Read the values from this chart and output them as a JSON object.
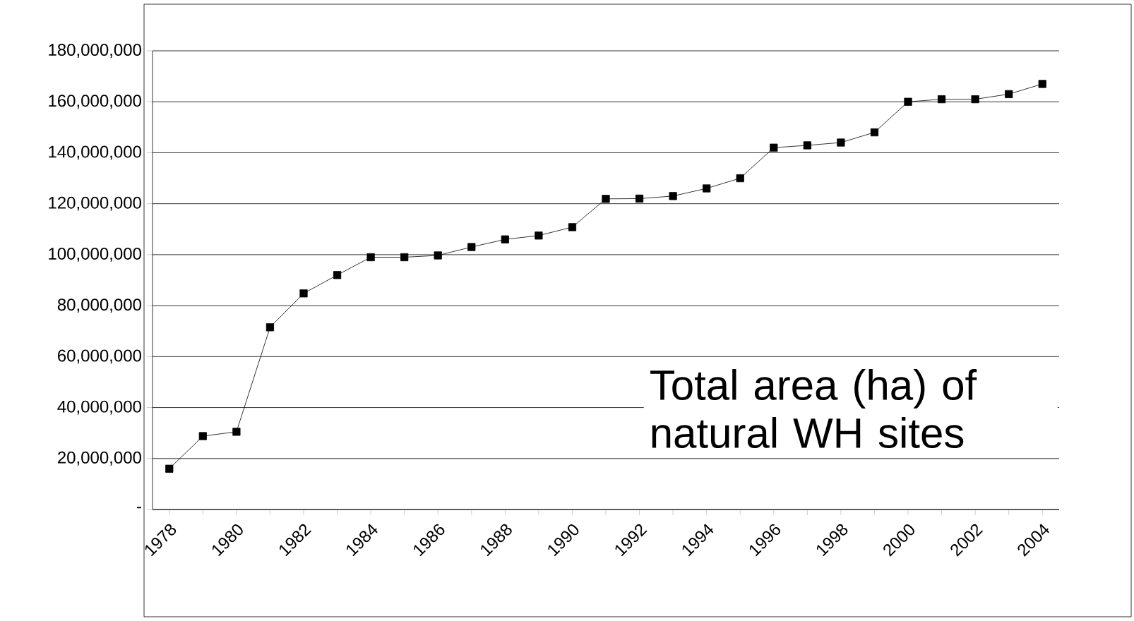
{
  "chart_data": {
    "type": "line",
    "categories": [
      "1978",
      null,
      "1980",
      null,
      "1982",
      null,
      "1984",
      null,
      "1986",
      null,
      "1988",
      null,
      "1990",
      null,
      "1992",
      null,
      "1994",
      null,
      "1996",
      null,
      "1998",
      null,
      "2000",
      null,
      "2002",
      null,
      "2004"
    ],
    "series": [
      {
        "color": "#000000",
        "values": [
          16000000,
          28800000,
          30500000,
          71500000,
          84800000,
          92000000,
          99000000,
          99000000,
          99700000,
          103000000,
          106000000,
          107500000,
          110800000,
          121900000,
          122000000,
          123000000,
          126000000,
          130000000,
          142000000,
          142900000,
          144000000,
          148000000,
          160000000,
          161000000,
          161000000,
          163000000,
          167000000
        ]
      }
    ],
    "ylim": [
      0,
      180000000
    ],
    "yticks": [
      {
        "value": 0,
        "label": "-"
      },
      {
        "value": 20000000,
        "label": "20,000,000"
      },
      {
        "value": 40000000,
        "label": "40,000,000"
      },
      {
        "value": 60000000,
        "label": "60,000,000"
      },
      {
        "value": 80000000,
        "label": "80,000,000"
      },
      {
        "value": 100000000,
        "label": "100,000,000"
      },
      {
        "value": 120000000,
        "label": "120,000,000"
      },
      {
        "value": 140000000,
        "label": "140,000,000"
      },
      {
        "value": 160000000,
        "label": "160,000,000"
      },
      {
        "value": 180000000,
        "label": "180,000,000"
      }
    ],
    "grid": "y",
    "marker": "square",
    "line_style": "solid",
    "annotations": [
      "Total area (ha) of natural WH sites"
    ]
  }
}
